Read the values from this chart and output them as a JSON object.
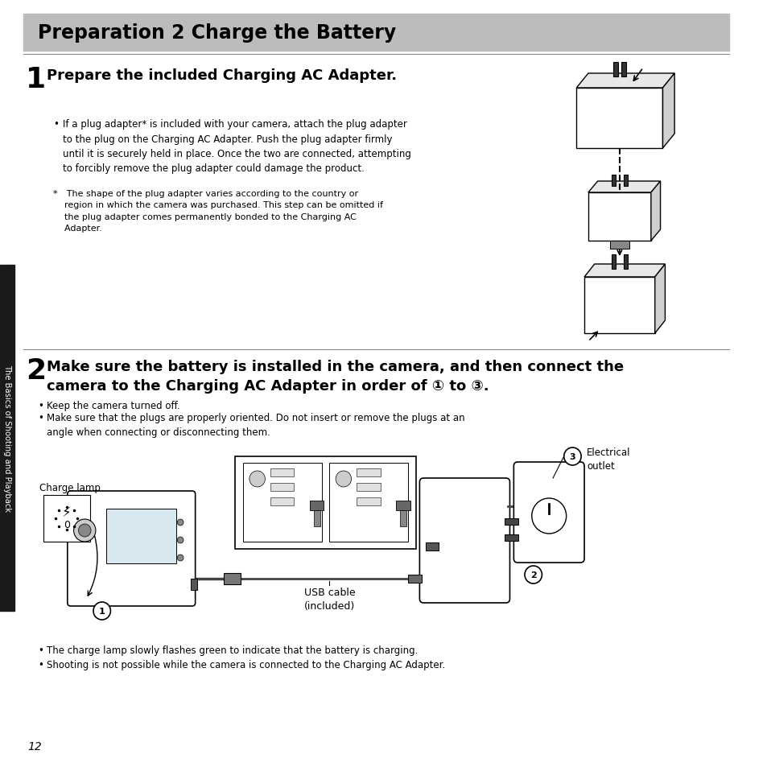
{
  "bg_color": "#ffffff",
  "title_bg_color": "#bcbcbc",
  "title_text": "Preparation 2 Charge the Battery",
  "title_fontsize": 17,
  "sidebar_color": "#1a1a1a",
  "sidebar_text": "The Basics of Shooting and Playback",
  "page_number": "12",
  "step1_number": "1",
  "step1_heading": "Prepare the included Charging AC Adapter.",
  "step1_bullet1": "If a plug adapter* is included with your camera, attach the plug adapter\nto the plug on the Charging AC Adapter. Push the plug adapter firmly\nuntil it is securely held in place. Once the two are connected, attempting\nto forcibly remove the plug adapter could damage the product.",
  "step1_note": "* The shape of the plug adapter varies according to the country or\n    region in which the camera was purchased. This step can be omitted if\n    the plug adapter comes permanently bonded to the Charging AC\n    Adapter.",
  "step2_number": "2",
  "step2_heading": "Make sure the battery is installed in the camera, and then connect the\ncamera to the Charging AC Adapter in order of ① to ③.",
  "step2_bullet1": "Keep the camera turned off.",
  "step2_bullet2": "Make sure that the plugs are properly oriented. Do not insert or remove the plugs at an\nangle when connecting or disconnecting them.",
  "diagram_label_charge": "Charge lamp",
  "diagram_label_usb": "USB cable\n(included)",
  "diagram_label_electrical": "Electrical\noutlet",
  "step2_note1": "The charge lamp slowly flashes green to indicate that the battery is charging.",
  "step2_note2": "Shooting is not possible while the camera is connected to the Charging AC Adapter.",
  "divider_color": "#888888",
  "text_color": "#000000",
  "small_fontsize": 8.0,
  "body_fontsize": 8.5,
  "heading_fontsize": 13,
  "step_num_fontsize": 26
}
